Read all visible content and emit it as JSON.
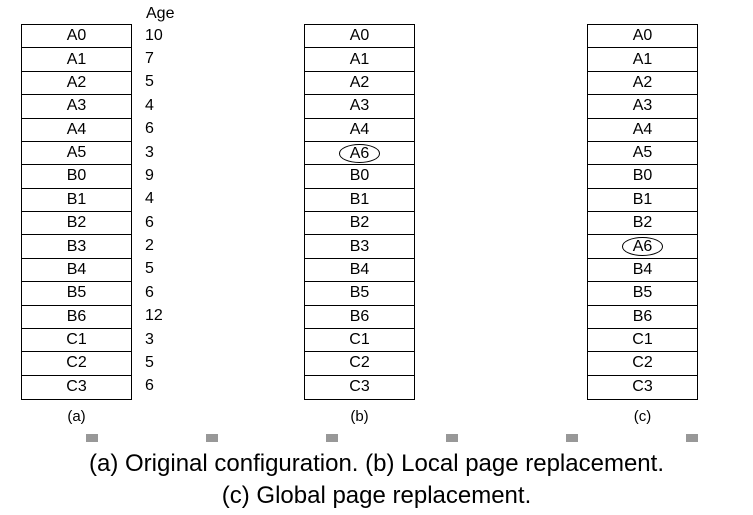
{
  "age_header": "Age",
  "panel_a": {
    "label": "(a)",
    "frames": [
      "A0",
      "A1",
      "A2",
      "A3",
      "A4",
      "A5",
      "B0",
      "B1",
      "B2",
      "B3",
      "B4",
      "B5",
      "B6",
      "C1",
      "C2",
      "C3"
    ],
    "ages": [
      "10",
      "7",
      "5",
      "4",
      "6",
      "3",
      "9",
      "4",
      "6",
      "2",
      "5",
      "6",
      "12",
      "3",
      "5",
      "6"
    ]
  },
  "panel_b": {
    "label": "(b)",
    "frames": [
      "A0",
      "A1",
      "A2",
      "A3",
      "A4",
      "A6",
      "B0",
      "B1",
      "B2",
      "B3",
      "B4",
      "B5",
      "B6",
      "C1",
      "C2",
      "C3"
    ],
    "highlighted_index": 5
  },
  "panel_c": {
    "label": "(c)",
    "frames": [
      "A0",
      "A1",
      "A2",
      "A3",
      "A4",
      "A5",
      "B0",
      "B1",
      "B2",
      "A6",
      "B4",
      "B5",
      "B6",
      "C1",
      "C2",
      "C3"
    ],
    "highlighted_index": 9
  },
  "caption": {
    "line1": "(a) Original configuration. (b) Local page replacement.",
    "line2": "(c) Global page replacement."
  }
}
